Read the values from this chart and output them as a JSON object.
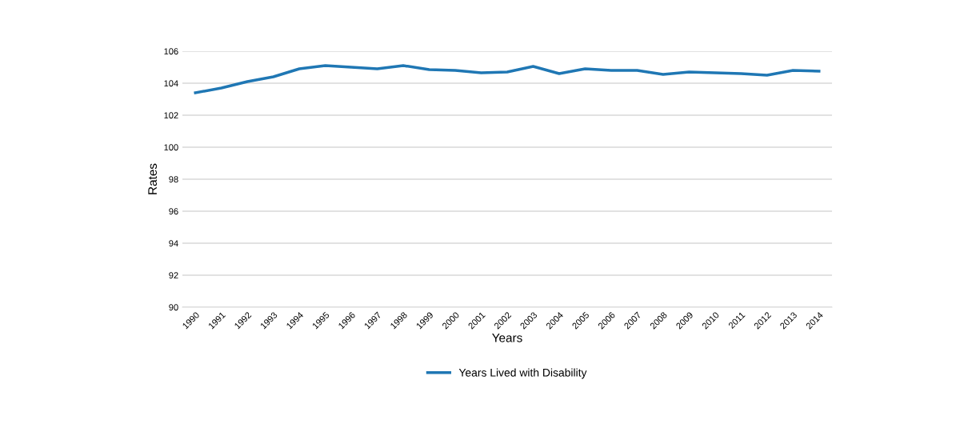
{
  "chart_data": {
    "type": "line",
    "xlabel": "Years",
    "ylabel": "Rates",
    "categories": [
      "1990",
      "1991",
      "1992",
      "1993",
      "1994",
      "1995",
      "1996",
      "1997",
      "1998",
      "1999",
      "2000",
      "2001",
      "2002",
      "2003",
      "2004",
      "2005",
      "2006",
      "2007",
      "2008",
      "2009",
      "2010",
      "2011",
      "2012",
      "2013",
      "2014"
    ],
    "series": [
      {
        "name": "Years Lived with Disability",
        "color": "#1f77b4",
        "values": [
          103.4,
          103.7,
          104.1,
          104.4,
          104.9,
          105.1,
          105.0,
          104.9,
          105.1,
          104.85,
          104.8,
          104.65,
          104.7,
          105.05,
          104.6,
          104.9,
          104.8,
          104.8,
          104.55,
          104.7,
          104.65,
          104.6,
          104.5,
          104.8,
          104.75
        ]
      }
    ],
    "ylim": [
      90,
      106
    ],
    "yticks": [
      90,
      92,
      94,
      96,
      98,
      100,
      102,
      104,
      106
    ],
    "grid": "y",
    "legend": "bottom",
    "marker": "none",
    "line_style": "solid"
  }
}
